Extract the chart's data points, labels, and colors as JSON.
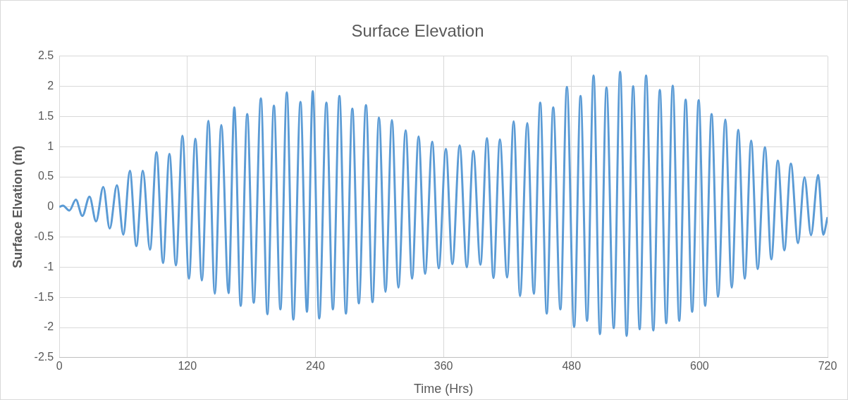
{
  "chart_data": {
    "type": "line",
    "title": "Surface Elevation",
    "xlabel": "Time (Hrs)",
    "ylabel": "Surface Elvation (m)",
    "series": [
      {
        "color": "#5b9bd5",
        "x": [
          0,
          3.4,
          9.4,
          15.5,
          21.6,
          28.3,
          34.4,
          41.2,
          47.2,
          54,
          60,
          66.1,
          72.2,
          78.3,
          85,
          91.1,
          97.2,
          103.2,
          109.3,
          115.4,
          121.5,
          127.5,
          133.6,
          139.7,
          145.7,
          151.8,
          158.6,
          164,
          170,
          176.1,
          182.2,
          188.9,
          195,
          201.1,
          207.2,
          213.2,
          219.3,
          226,
          232.1,
          237.5,
          243.6,
          250.3,
          256.4,
          262.5,
          268.6,
          274.6,
          280.7,
          287.4,
          293.5,
          299.6,
          305.7,
          311.7,
          317.8,
          324.6,
          330.6,
          336.7,
          342.8,
          349.5,
          355.6,
          362.3,
          368.4,
          375.2,
          381.9,
          388,
          394.7,
          400.8,
          406.9,
          412.9,
          419.7,
          425.8,
          431.8,
          438.6,
          444.7,
          450.7,
          456.8,
          462.9,
          469.6,
          475.7,
          482.5,
          488.5,
          494.6,
          500.7,
          506.7,
          512.8,
          519.6,
          525.6,
          531.7,
          537.8,
          543.9,
          549.9,
          556.7,
          562.8,
          568.8,
          574.9,
          581,
          587,
          593.1,
          599.2,
          605.3,
          611.3,
          617.4,
          624.2,
          630.2,
          636.3,
          642.4,
          648.4,
          654.5,
          661.3,
          667.3,
          673.4,
          679.5,
          685.6,
          692.3,
          698.4,
          704.5,
          711.2,
          715.9,
          720
        ],
        "values": [
          0,
          0.02,
          -0.06,
          0.12,
          -0.15,
          0.17,
          -0.24,
          0.33,
          -0.36,
          0.36,
          -0.46,
          0.6,
          -0.65,
          0.6,
          -0.71,
          0.91,
          -0.93,
          0.88,
          -0.97,
          1.18,
          -1.19,
          1.13,
          -1.22,
          1.43,
          -1.44,
          1.36,
          -1.43,
          1.65,
          -1.64,
          1.54,
          -1.59,
          1.8,
          -1.78,
          1.68,
          -1.7,
          1.9,
          -1.87,
          1.74,
          -1.74,
          1.92,
          -1.85,
          1.73,
          -1.7,
          1.84,
          -1.77,
          1.63,
          -1.6,
          1.69,
          -1.58,
          1.48,
          -1.41,
          1.44,
          -1.34,
          1.27,
          -1.19,
          1.17,
          -1.11,
          1.08,
          -1.02,
          0.96,
          -0.95,
          1.02,
          -1.0,
          0.93,
          -0.96,
          1.14,
          -1.18,
          1.12,
          -1.17,
          1.42,
          -1.48,
          1.39,
          -1.44,
          1.73,
          -1.77,
          1.65,
          -1.7,
          1.99,
          -1.99,
          1.84,
          -1.89,
          2.18,
          -2.11,
          1.98,
          -2.01,
          2.24,
          -2.14,
          2.0,
          -2.03,
          2.18,
          -2.05,
          1.94,
          -1.93,
          2.01,
          -1.89,
          1.78,
          -1.74,
          1.77,
          -1.64,
          1.54,
          -1.49,
          1.45,
          -1.34,
          1.28,
          -1.19,
          1.1,
          -1.03,
          0.99,
          -0.87,
          0.77,
          -0.72,
          0.72,
          -0.6,
          0.49,
          -0.47,
          0.53,
          -0.46,
          -0.17
        ]
      }
    ],
    "xlim": [
      0,
      720
    ],
    "xticks": [
      0,
      120,
      240,
      360,
      480,
      600,
      720
    ],
    "ylim": [
      -2.5,
      2.5
    ],
    "yticks": [
      -2.5,
      -2,
      -1.5,
      -1,
      -0.5,
      0,
      0.5,
      1,
      1.5,
      2,
      2.5
    ],
    "grid": true,
    "legend": false,
    "marker": "none",
    "line_style": "solid"
  }
}
